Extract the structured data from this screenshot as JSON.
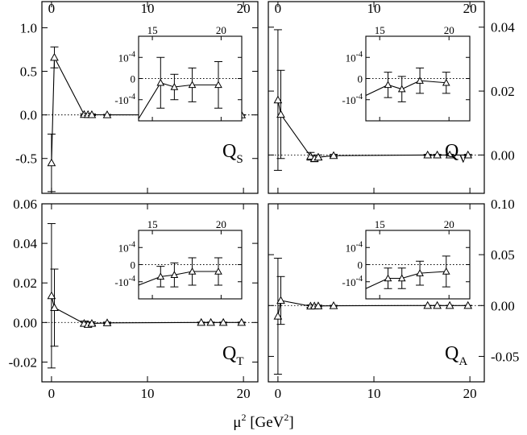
{
  "xlabel": {
    "base": "μ",
    "sup": "2",
    "unit_open": " [GeV",
    "unit_sup": "2",
    "unit_close": "]"
  },
  "chart_data": [
    {
      "type": "scatter",
      "panel": "top-left",
      "label": "Q",
      "label_sub": "S",
      "xlim": [
        -1,
        21.5
      ],
      "ylim": [
        -0.9,
        1.3
      ],
      "xticks": [
        0,
        10,
        20
      ],
      "xtick_labels": [
        "0",
        "10",
        "20"
      ],
      "yticks": [
        -0.5,
        0,
        0.5,
        1.0
      ],
      "ytick_labels": [
        "-0.5",
        "0.0",
        "0.5",
        "1.0"
      ],
      "zero_line": true,
      "series": [
        {
          "points": [
            {
              "x": 0.0,
              "y": -0.55,
              "err": 0.33
            },
            {
              "x": 0.3,
              "y": 0.66,
              "err": 0.12
            },
            {
              "x": 3.4,
              "y": 0.004,
              "err": 0.01
            },
            {
              "x": 3.8,
              "y": 0.003,
              "err": 0.01
            },
            {
              "x": 4.2,
              "y": 0.002,
              "err": 0.01
            },
            {
              "x": 5.8,
              "y": 0.001,
              "err": 0.005
            },
            {
              "x": 15.6,
              "y": 0.0,
              "err": 0.003
            },
            {
              "x": 16.6,
              "y": 0.0,
              "err": 0.003
            },
            {
              "x": 17.9,
              "y": 0.0,
              "err": 0.003
            },
            {
              "x": 19.8,
              "y": 0.0,
              "err": 0.003
            }
          ]
        }
      ],
      "inset": {
        "xlim": [
          14,
          21.5
        ],
        "ylim": [
          -0.0002,
          0.0002
        ],
        "xticks": [
          15,
          20
        ],
        "xtick_labels": [
          "15",
          "20"
        ],
        "yticks": [
          0.0001,
          0,
          -0.0001
        ],
        "ytick_labels": [
          "10^-4",
          "0",
          "-10^-4"
        ],
        "points": [
          {
            "x": 14.0,
            "y": -0.00019,
            "err": 0
          },
          {
            "x": 15.6,
            "y": -2e-05,
            "err": 0.00012
          },
          {
            "x": 16.6,
            "y": -4e-05,
            "err": 6e-05
          },
          {
            "x": 17.9,
            "y": -3e-05,
            "err": 8e-05
          },
          {
            "x": 19.8,
            "y": -3e-05,
            "err": 0.00011
          }
        ]
      }
    },
    {
      "type": "scatter",
      "panel": "top-right",
      "label": "Q",
      "label_sub": "V",
      "xlim": [
        -1,
        21.5
      ],
      "ylim": [
        -0.012,
        0.048
      ],
      "xticks": [
        0,
        10,
        20
      ],
      "xtick_labels": [
        "0",
        "10",
        "20"
      ],
      "yticks": [
        0.0,
        0.02,
        0.04
      ],
      "ytick_labels": [
        "0.00",
        "0.02",
        "0.04"
      ],
      "zero_line": true,
      "series": [
        {
          "points": [
            {
              "x": 0.0,
              "y": 0.0172,
              "err": 0.022
            },
            {
              "x": 0.3,
              "y": 0.0127,
              "err": 0.0138
            },
            {
              "x": 3.4,
              "y": -0.0004,
              "err": 0.0012
            },
            {
              "x": 3.8,
              "y": -0.0011,
              "err": 0.001
            },
            {
              "x": 4.2,
              "y": -0.0007,
              "err": 0.0007
            },
            {
              "x": 5.8,
              "y": -0.0002,
              "err": 0.0004
            },
            {
              "x": 15.6,
              "y": 0.0,
              "err": 0.0002
            },
            {
              "x": 16.6,
              "y": 0.0,
              "err": 0.0002
            },
            {
              "x": 17.9,
              "y": 0.0,
              "err": 0.0002
            },
            {
              "x": 19.8,
              "y": 0.0,
              "err": 0.0002
            }
          ]
        }
      ],
      "inset": {
        "xlim": [
          14,
          21.5
        ],
        "ylim": [
          -0.0002,
          0.0002
        ],
        "xticks": [
          15,
          20
        ],
        "xtick_labels": [
          "15",
          "20"
        ],
        "yticks": [
          0.0001,
          0,
          -0.0001
        ],
        "ytick_labels": [
          "10^-4",
          "0",
          "-10^-4"
        ],
        "points": [
          {
            "x": 14.0,
            "y": -8e-05,
            "err": 0
          },
          {
            "x": 15.6,
            "y": -3e-05,
            "err": 6e-05
          },
          {
            "x": 16.6,
            "y": -5e-05,
            "err": 6e-05
          },
          {
            "x": 17.9,
            "y": -1e-05,
            "err": 6e-05
          },
          {
            "x": 19.8,
            "y": -2e-05,
            "err": 5e-05
          }
        ]
      }
    },
    {
      "type": "scatter",
      "panel": "bottom-left",
      "label": "Q",
      "label_sub": "T",
      "xlim": [
        -1,
        21.5
      ],
      "ylim": [
        -0.03,
        0.06
      ],
      "xticks": [
        0,
        10,
        20
      ],
      "xtick_labels": [
        "0",
        "10",
        "20"
      ],
      "yticks": [
        -0.02,
        0.0,
        0.02,
        0.04,
        0.06
      ],
      "ytick_labels": [
        "-0.02",
        "0.00",
        "0.02",
        "0.04",
        "0.06"
      ],
      "zero_line": true,
      "series": [
        {
          "points": [
            {
              "x": 0.0,
              "y": 0.0135,
              "err": 0.0365
            },
            {
              "x": 0.3,
              "y": 0.0075,
              "err": 0.0195
            },
            {
              "x": 3.4,
              "y": -0.0005,
              "err": 0.0012
            },
            {
              "x": 3.8,
              "y": -0.001,
              "err": 0.0012
            },
            {
              "x": 4.2,
              "y": -0.0005,
              "err": 0.0008
            },
            {
              "x": 5.8,
              "y": -0.0002,
              "err": 0.0004
            },
            {
              "x": 15.6,
              "y": 0.0,
              "err": 0.0002
            },
            {
              "x": 16.6,
              "y": 0.0,
              "err": 0.0002
            },
            {
              "x": 17.9,
              "y": 0.0,
              "err": 0.0002
            },
            {
              "x": 19.8,
              "y": 0.0,
              "err": 0.0002
            }
          ]
        }
      ],
      "inset": {
        "xlim": [
          14,
          21.5
        ],
        "ylim": [
          -0.0002,
          0.0002
        ],
        "xticks": [
          15,
          20
        ],
        "xtick_labels": [
          "15",
          "20"
        ],
        "yticks": [
          0.0001,
          0,
          -0.0001
        ],
        "ytick_labels": [
          "10^-4",
          "0",
          "-10^-4"
        ],
        "points": [
          {
            "x": 14.0,
            "y": -0.00012,
            "err": 0
          },
          {
            "x": 15.6,
            "y": -7e-05,
            "err": 6e-05
          },
          {
            "x": 16.6,
            "y": -6e-05,
            "err": 7e-05
          },
          {
            "x": 17.9,
            "y": -4e-05,
            "err": 8e-05
          },
          {
            "x": 19.8,
            "y": -4e-05,
            "err": 8e-05
          }
        ]
      }
    },
    {
      "type": "scatter",
      "panel": "bottom-right",
      "label": "Q",
      "label_sub": "A",
      "xlim": [
        -1,
        21.5
      ],
      "ylim": [
        -0.075,
        0.1
      ],
      "xticks": [
        0,
        10,
        20
      ],
      "xtick_labels": [
        "0",
        "10",
        "20"
      ],
      "yticks": [
        -0.05,
        0.0,
        0.05,
        0.1
      ],
      "ytick_labels": [
        "-0.05",
        "0.00",
        "0.05",
        "0.10"
      ],
      "zero_line": true,
      "series": [
        {
          "points": [
            {
              "x": 0.0,
              "y": -0.0105,
              "err": 0.057
            },
            {
              "x": 0.3,
              "y": 0.005,
              "err": 0.0235
            },
            {
              "x": 3.4,
              "y": -0.0006,
              "err": 0.0012
            },
            {
              "x": 3.8,
              "y": -0.0005,
              "err": 0.001
            },
            {
              "x": 4.2,
              "y": -0.0004,
              "err": 0.0008
            },
            {
              "x": 5.8,
              "y": -0.0002,
              "err": 0.0004
            },
            {
              "x": 15.6,
              "y": 0.0,
              "err": 0.0002
            },
            {
              "x": 16.6,
              "y": 0.0,
              "err": 0.0002
            },
            {
              "x": 17.9,
              "y": 0.0,
              "err": 0.0002
            },
            {
              "x": 19.8,
              "y": 0.0,
              "err": 0.0002
            }
          ]
        }
      ],
      "inset": {
        "xlim": [
          14,
          21.5
        ],
        "ylim": [
          -0.0002,
          0.0002
        ],
        "xticks": [
          15,
          20
        ],
        "xtick_labels": [
          "15",
          "20"
        ],
        "yticks": [
          0.0001,
          0,
          -0.0001
        ],
        "ytick_labels": [
          "10^-4",
          "0",
          "-10^-4"
        ],
        "points": [
          {
            "x": 14.0,
            "y": -0.00014,
            "err": 0
          },
          {
            "x": 15.6,
            "y": -8e-05,
            "err": 6e-05
          },
          {
            "x": 16.6,
            "y": -8e-05,
            "err": 6e-05
          },
          {
            "x": 17.9,
            "y": -5e-05,
            "err": 7e-05
          },
          {
            "x": 19.8,
            "y": -4e-05,
            "err": 9e-05
          }
        ]
      }
    }
  ]
}
